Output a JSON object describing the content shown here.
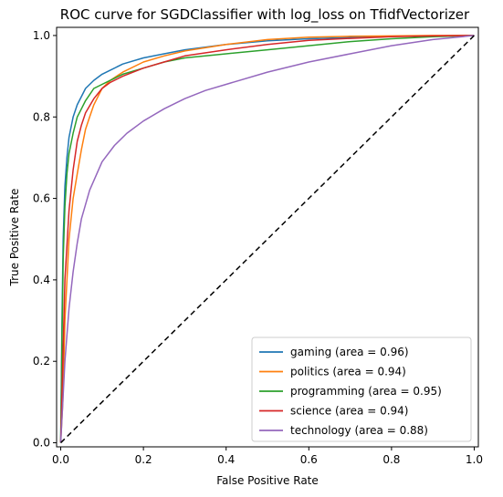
{
  "chart_data": {
    "type": "line",
    "title": "ROC curve for SGDClassifier with log_loss on TfidfVectorizer",
    "xlabel": "False Positive Rate",
    "ylabel": "True Positive Rate",
    "xlim": [
      -0.01,
      1.01
    ],
    "ylim": [
      -0.01,
      1.02
    ],
    "x_ticks": [
      "0.0",
      "0.2",
      "0.4",
      "0.6",
      "0.8",
      "1.0"
    ],
    "y_ticks": [
      "0.0",
      "0.2",
      "0.4",
      "0.6",
      "0.8",
      "1.0"
    ],
    "grid": false,
    "legend_position": "lower-right",
    "series": [
      {
        "name": "gaming (area = 0.96)",
        "color": "#1f77b4",
        "x": [
          0.0,
          0.003,
          0.006,
          0.01,
          0.015,
          0.02,
          0.03,
          0.04,
          0.05,
          0.06,
          0.08,
          0.1,
          0.12,
          0.15,
          0.2,
          0.25,
          0.3,
          0.4,
          0.5,
          0.6,
          0.7,
          0.8,
          0.9,
          1.0
        ],
        "y": [
          0.0,
          0.3,
          0.5,
          0.63,
          0.7,
          0.75,
          0.8,
          0.83,
          0.85,
          0.87,
          0.89,
          0.905,
          0.915,
          0.93,
          0.945,
          0.955,
          0.965,
          0.978,
          0.987,
          0.992,
          0.995,
          0.998,
          0.999,
          1.0
        ]
      },
      {
        "name": "politics (area = 0.94)",
        "color": "#ff7f0e",
        "x": [
          0.0,
          0.005,
          0.01,
          0.02,
          0.03,
          0.04,
          0.05,
          0.06,
          0.07,
          0.08,
          0.1,
          0.12,
          0.15,
          0.2,
          0.25,
          0.3,
          0.4,
          0.5,
          0.6,
          0.7,
          0.8,
          0.9,
          1.0
        ],
        "y": [
          0.0,
          0.1,
          0.3,
          0.5,
          0.6,
          0.66,
          0.72,
          0.77,
          0.8,
          0.83,
          0.87,
          0.89,
          0.91,
          0.935,
          0.95,
          0.962,
          0.978,
          0.99,
          0.996,
          0.998,
          0.999,
          1.0,
          1.0
        ]
      },
      {
        "name": "programming (area = 0.95)",
        "color": "#2ca02c",
        "x": [
          0.0,
          0.003,
          0.006,
          0.01,
          0.015,
          0.02,
          0.03,
          0.04,
          0.05,
          0.06,
          0.08,
          0.1,
          0.12,
          0.15,
          0.2,
          0.25,
          0.3,
          0.4,
          0.5,
          0.6,
          0.7,
          0.8,
          0.9,
          1.0
        ],
        "y": [
          0.0,
          0.25,
          0.45,
          0.58,
          0.66,
          0.71,
          0.76,
          0.8,
          0.82,
          0.84,
          0.87,
          0.88,
          0.89,
          0.905,
          0.92,
          0.935,
          0.945,
          0.955,
          0.965,
          0.975,
          0.985,
          0.992,
          0.997,
          1.0
        ]
      },
      {
        "name": "science (area = 0.94)",
        "color": "#d62728",
        "x": [
          0.0,
          0.005,
          0.01,
          0.02,
          0.03,
          0.04,
          0.05,
          0.06,
          0.08,
          0.1,
          0.12,
          0.15,
          0.2,
          0.25,
          0.3,
          0.4,
          0.5,
          0.6,
          0.7,
          0.8,
          0.9,
          1.0
        ],
        "y": [
          0.0,
          0.2,
          0.4,
          0.57,
          0.67,
          0.74,
          0.78,
          0.81,
          0.845,
          0.87,
          0.885,
          0.9,
          0.92,
          0.935,
          0.95,
          0.965,
          0.978,
          0.988,
          0.993,
          0.997,
          0.999,
          1.0
        ]
      },
      {
        "name": "technology (area = 0.88)",
        "color": "#9467bd",
        "x": [
          0.0,
          0.005,
          0.01,
          0.02,
          0.03,
          0.04,
          0.05,
          0.07,
          0.1,
          0.13,
          0.16,
          0.2,
          0.25,
          0.3,
          0.35,
          0.4,
          0.5,
          0.6,
          0.7,
          0.8,
          0.9,
          1.0
        ],
        "y": [
          0.0,
          0.1,
          0.2,
          0.33,
          0.42,
          0.49,
          0.55,
          0.62,
          0.69,
          0.73,
          0.76,
          0.79,
          0.82,
          0.845,
          0.865,
          0.88,
          0.91,
          0.935,
          0.955,
          0.975,
          0.99,
          1.0
        ]
      }
    ],
    "reference_line": {
      "style": "dashed",
      "color": "#000000",
      "x": [
        0.0,
        1.0
      ],
      "y": [
        0.0,
        1.0
      ]
    }
  }
}
